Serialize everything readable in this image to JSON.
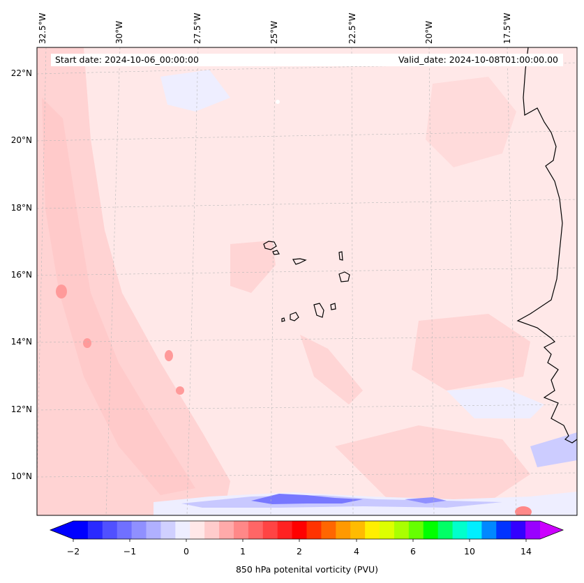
{
  "map": {
    "start_date": "Start date: 2024-10-06_00:00:00",
    "valid_date": "Valid_date: 2024-10-08T01:00:00.00",
    "lon_labels": [
      "32.5°W",
      "30°W",
      "27.5°W",
      "25°W",
      "22.5°W",
      "20°W",
      "17.5°W"
    ],
    "lat_labels": [
      "22°N",
      "20°N",
      "18°N",
      "16°N",
      "14°N",
      "12°N",
      "10°N"
    ],
    "variable": "850 hPa potential vorticity",
    "colors": {
      "background_fill": "#ffe8e8",
      "coastline": "#000000",
      "gridline": "#b0b0b0"
    }
  },
  "colorbar": {
    "label": "850 hPa potenital vorticity (PVU)",
    "ticks": [
      "−2",
      "−1",
      "0",
      "1",
      "2",
      "4",
      "6",
      "10",
      "14"
    ],
    "colors": [
      "#0000ff",
      "#2a2aff",
      "#5050ff",
      "#7070ff",
      "#9090ff",
      "#b0b0ff",
      "#d0d0ff",
      "#eeeeff",
      "#ffe8e8",
      "#ffcccc",
      "#ffaaaa",
      "#ff8888",
      "#ff6666",
      "#ff4444",
      "#ff2222",
      "#ff0000",
      "#ff3300",
      "#ff6600",
      "#ff9900",
      "#ffbb00",
      "#ffee00",
      "#ddff00",
      "#aaff00",
      "#66ff00",
      "#00ff00",
      "#00ff66",
      "#00ffcc",
      "#00eeff",
      "#0088ff",
      "#0033ff",
      "#3300ff",
      "#9900ff"
    ],
    "extend_left_color": "#0000ff",
    "extend_right_color": "#cc00ff"
  }
}
